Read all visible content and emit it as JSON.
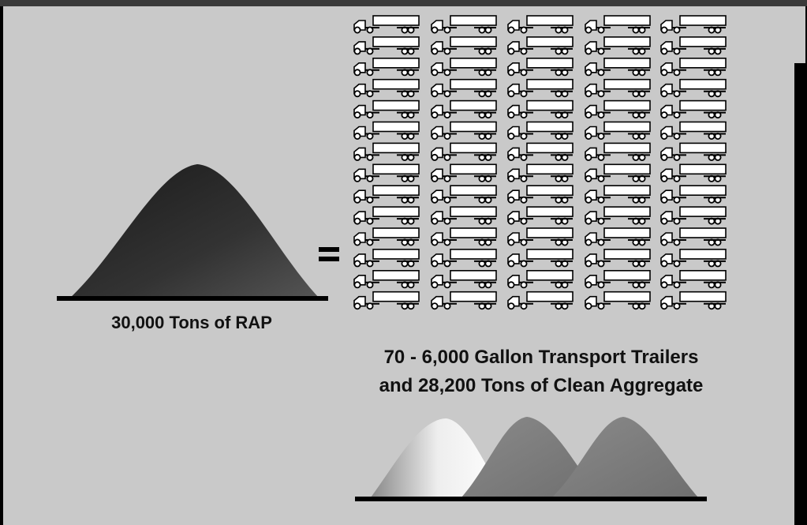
{
  "left_label": "30,000 Tons of RAP",
  "caption": [
    "70 - 6,000 Gallon Transport Trailers",
    "and 28,200 Tons of Clean Aggregate"
  ]
}
